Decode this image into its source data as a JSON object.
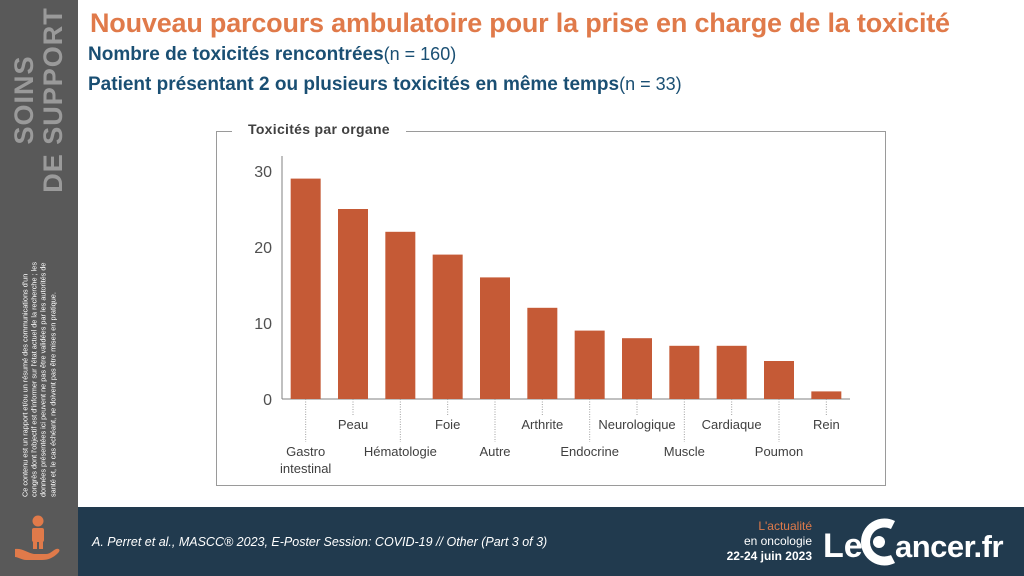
{
  "sidebar": {
    "title_line1": "SOINS",
    "title_line2": "DE SUPPORT",
    "disclaimer": "Ce contenu est un rapport et/ou un résumé des communications d'un congrès dont l'objectif est d'informer sur l'état actuel de la recherche ; les données présentées ici peuvent ne pas être validées par les autorités de santé et, le cas échéant, ne doivent pas être mises en pratique.",
    "icon": "hand-person-icon"
  },
  "header": {
    "title": "Nouveau parcours ambulatoire pour la prise en charge de la toxicité",
    "sub1_bold": "Nombre de toxicités rencontrées",
    "sub1_n": "(n = 160)",
    "sub2_bold": "Patient présentant 2 ou plusieurs toxicités en même temps",
    "sub2_n": "(n = 33)"
  },
  "footer": {
    "citation": "A. Perret et al., MASCC® 2023, E-Poster Session: COVID-19 // Other (Part 3 of 3)",
    "event_line1": "L'actualité",
    "event_line2": "en oncologie",
    "event_line3": "22-24 juin 2023",
    "brand_le": "Le",
    "brand_rest": "ancer.fr"
  },
  "colors": {
    "accent": "#e07a4a",
    "bar": "#c55a36",
    "navy": "#1a4f73",
    "footer": "#213a4e",
    "sidebar": "#595959"
  },
  "chart_data": {
    "type": "bar",
    "title": "Toxicités par organe",
    "categories": [
      [
        "Gastro",
        "intestinal"
      ],
      [
        "Peau"
      ],
      [
        "Hématologie"
      ],
      [
        "Foie"
      ],
      [
        "Autre"
      ],
      [
        "Arthrite"
      ],
      [
        "Endocrine"
      ],
      [
        "Neurologique"
      ],
      [
        "Muscle"
      ],
      [
        "Cardiaque"
      ],
      [
        "Poumon"
      ],
      [
        "Rein"
      ]
    ],
    "values": [
      29,
      25,
      22,
      19,
      16,
      12,
      9,
      8,
      7,
      7,
      5,
      1
    ],
    "ylim": [
      0,
      32
    ],
    "yticks": [
      0,
      10,
      20,
      30
    ],
    "grid": false
  }
}
